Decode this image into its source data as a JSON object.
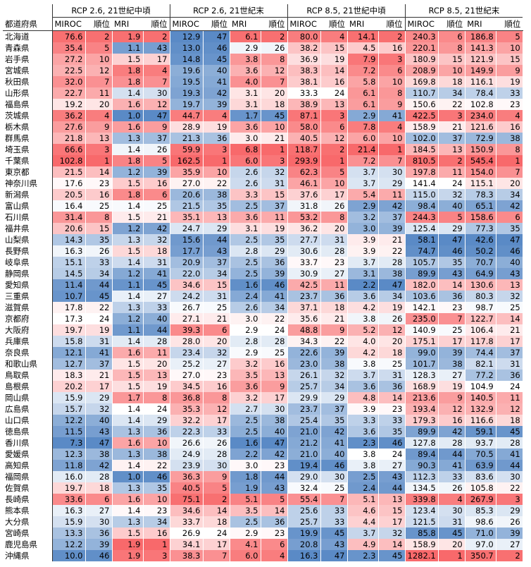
{
  "header": {
    "prefecture_label": "都道府県",
    "groups": [
      {
        "title": "RCP 2.6, 21世紀中頃",
        "columns": [
          "MIROC",
          "順位",
          "MRI",
          "順位"
        ]
      },
      {
        "title": "RCP 2.6, 21世紀末",
        "columns": [
          "MIROC",
          "順位",
          "MRI",
          "順位"
        ]
      },
      {
        "title": "RCP 8.5, 21世紀中頃",
        "columns": [
          "MIROC",
          "順位",
          "MRI",
          "順位"
        ]
      },
      {
        "title": "RCP 8.5, 21世紀末",
        "columns": [
          "MIROC",
          "順位",
          "MRI",
          "順位"
        ]
      }
    ]
  },
  "color_scale": {
    "high": "#f8696b",
    "mid": "#ffffff",
    "low": "#5a8ac6"
  },
  "rows": [
    {
      "name": "北海道",
      "cells": [
        "76.6",
        "2",
        "1.9",
        "2",
        "12.9",
        "47",
        "6.1",
        "2",
        "80.0",
        "4",
        "14.1",
        "2",
        "240.3",
        "6",
        "186.8",
        "5"
      ]
    },
    {
      "name": "青森県",
      "cells": [
        "35.4",
        "5",
        "1.1",
        "43",
        "13.0",
        "46",
        "2.9",
        "26",
        "38.2",
        "15",
        "4.5",
        "16",
        "220.1",
        "8",
        "141.3",
        "10"
      ]
    },
    {
      "name": "岩手県",
      "cells": [
        "27.2",
        "10",
        "1.5",
        "17",
        "14.8",
        "45",
        "3.8",
        "8",
        "36.9",
        "19",
        "7.9",
        "3",
        "180.9",
        "15",
        "121.9",
        "15"
      ]
    },
    {
      "name": "宮城県",
      "cells": [
        "22.5",
        "12",
        "1.8",
        "4",
        "19.6",
        "40",
        "3.6",
        "12",
        "38.3",
        "14",
        "7.2",
        "6",
        "208.9",
        "10",
        "149.9",
        "9"
      ]
    },
    {
      "name": "秋田県",
      "cells": [
        "32.0",
        "7",
        "1.8",
        "7",
        "19.5",
        "41",
        "4.0",
        "7",
        "38.1",
        "16",
        "5.8",
        "10",
        "169.8",
        "18",
        "116.1",
        "19"
      ]
    },
    {
      "name": "山形県",
      "cells": [
        "22.7",
        "11",
        "1.4",
        "30",
        "19.3",
        "42",
        "3.1",
        "20",
        "33.3",
        "24",
        "6.1",
        "8",
        "110.7",
        "34",
        "78.4",
        "33"
      ]
    },
    {
      "name": "福島県",
      "cells": [
        "19.2",
        "20",
        "1.6",
        "12",
        "19.7",
        "39",
        "3.1",
        "18",
        "38.9",
        "13",
        "6.1",
        "9",
        "150.6",
        "22",
        "102.8",
        "23"
      ]
    },
    {
      "name": "茨城県",
      "cells": [
        "36.2",
        "4",
        "1.0",
        "47",
        "44.7",
        "4",
        "1.7",
        "45",
        "87.1",
        "3",
        "2.9",
        "41",
        "422.5",
        "3",
        "234.0",
        "4"
      ]
    },
    {
      "name": "栃木県",
      "cells": [
        "27.6",
        "9",
        "1.6",
        "9",
        "28.9",
        "19",
        "3.6",
        "10",
        "58.0",
        "6",
        "7.8",
        "4",
        "158.9",
        "21",
        "121.6",
        "16"
      ]
    },
    {
      "name": "群馬県",
      "cells": [
        "21.8",
        "13",
        "1.3",
        "37",
        "21.3",
        "36",
        "3.0",
        "21",
        "40.5",
        "12",
        "6.0",
        "10",
        "102.0",
        "37",
        "72.9",
        "38"
      ]
    },
    {
      "name": "埼玉県",
      "cells": [
        "66.6",
        "3",
        "1.4",
        "26",
        "59.9",
        "3",
        "6.8",
        "1",
        "118.7",
        "2",
        "21.4",
        "1",
        "184.5",
        "13",
        "150.9",
        "8"
      ]
    },
    {
      "name": "千葉県",
      "cells": [
        "102.8",
        "1",
        "1.8",
        "5",
        "162.5",
        "1",
        "6.0",
        "3",
        "293.9",
        "1",
        "7.2",
        "7",
        "810.5",
        "2",
        "545.4",
        "1"
      ]
    },
    {
      "name": "東京都",
      "cells": [
        "21.5",
        "14",
        "1.2",
        "39",
        "35.9",
        "10",
        "2.6",
        "32",
        "62.3",
        "5",
        "3.7",
        "30",
        "197.8",
        "11",
        "154.0",
        "7"
      ]
    },
    {
      "name": "神奈川県",
      "cells": [
        "17.6",
        "23",
        "1.5",
        "16",
        "27.0",
        "22",
        "2.6",
        "31",
        "46.1",
        "10",
        "3.7",
        "29",
        "141.4",
        "24",
        "115.1",
        "20"
      ]
    },
    {
      "name": "新潟県",
      "cells": [
        "20.5",
        "16",
        "1.8",
        "6",
        "20.6",
        "38",
        "3.3",
        "15",
        "37.6",
        "17",
        "5.4",
        "11",
        "115.0",
        "32",
        "78.3",
        "34"
      ]
    },
    {
      "name": "富山県",
      "cells": [
        "16.4",
        "25",
        "1.4",
        "25",
        "21.5",
        "35",
        "2.5",
        "37",
        "31.8",
        "26",
        "2.9",
        "42",
        "98.4",
        "40",
        "65.1",
        "42"
      ]
    },
    {
      "name": "石川県",
      "cells": [
        "31.4",
        "8",
        "1.5",
        "21",
        "35.1",
        "13",
        "3.6",
        "11",
        "53.2",
        "8",
        "3.2",
        "37",
        "244.3",
        "5",
        "158.6",
        "6"
      ]
    },
    {
      "name": "福井県",
      "cells": [
        "20.6",
        "15",
        "1.2",
        "42",
        "24.7",
        "29",
        "3.1",
        "19",
        "36.2",
        "20",
        "3.0",
        "39",
        "125.4",
        "29",
        "77.3",
        "35"
      ]
    },
    {
      "name": "山梨県",
      "cells": [
        "14.3",
        "35",
        "1.3",
        "32",
        "15.6",
        "44",
        "2.5",
        "35",
        "27.7",
        "31",
        "3.9",
        "21",
        "58.1",
        "47",
        "42.6",
        "47"
      ]
    },
    {
      "name": "長野県",
      "cells": [
        "16.3",
        "26",
        "1.5",
        "18",
        "17.7",
        "43",
        "2.8",
        "29",
        "30.6",
        "28",
        "3.9",
        "22",
        "74.7",
        "46",
        "50.2",
        "46"
      ]
    },
    {
      "name": "岐阜県",
      "cells": [
        "15.1",
        "33",
        "1.4",
        "31",
        "20.9",
        "37",
        "2.5",
        "36",
        "33.7",
        "23",
        "3.7",
        "28",
        "105.7",
        "35",
        "70.7",
        "40"
      ]
    },
    {
      "name": "静岡県",
      "cells": [
        "14.5",
        "34",
        "1.2",
        "41",
        "22.0",
        "34",
        "2.5",
        "39",
        "30.9",
        "27",
        "3.1",
        "38",
        "89.9",
        "43",
        "64.9",
        "43"
      ]
    },
    {
      "name": "愛知県",
      "cells": [
        "11.4",
        "44",
        "1.1",
        "45",
        "34.6",
        "15",
        "1.6",
        "46",
        "42.5",
        "11",
        "2.2",
        "47",
        "182.0",
        "14",
        "130.6",
        "13"
      ]
    },
    {
      "name": "三重県",
      "cells": [
        "10.7",
        "45",
        "1.4",
        "27",
        "24.2",
        "31",
        "2.4",
        "41",
        "23.7",
        "36",
        "3.6",
        "34",
        "103.6",
        "36",
        "80.3",
        "32"
      ]
    },
    {
      "name": "滋賀県",
      "cells": [
        "17.8",
        "22",
        "1.3",
        "33",
        "26.7",
        "25",
        "2.6",
        "34",
        "37.1",
        "18",
        "4.2",
        "19",
        "142.1",
        "23",
        "98.7",
        "25"
      ]
    },
    {
      "name": "京都府",
      "cells": [
        "17.3",
        "24",
        "1.2",
        "40",
        "27.1",
        "21",
        "3.0",
        "22",
        "35.6",
        "21",
        "3.8",
        "26",
        "235.0",
        "7",
        "122.7",
        "14"
      ]
    },
    {
      "name": "大阪府",
      "cells": [
        "19.7",
        "19",
        "1.1",
        "44",
        "39.3",
        "6",
        "2.9",
        "24",
        "48.8",
        "9",
        "5.2",
        "12",
        "140.9",
        "25",
        "106.4",
        "21"
      ]
    },
    {
      "name": "兵庫県",
      "cells": [
        "15.8",
        "31",
        "1.4",
        "28",
        "28.0",
        "20",
        "2.8",
        "28",
        "34.3",
        "22",
        "4.0",
        "20",
        "175.1",
        "17",
        "117.8",
        "17"
      ]
    },
    {
      "name": "奈良県",
      "cells": [
        "12.1",
        "41",
        "1.6",
        "11",
        "23.4",
        "32",
        "2.9",
        "25",
        "22.6",
        "39",
        "4.2",
        "18",
        "99.0",
        "39",
        "74.4",
        "37"
      ]
    },
    {
      "name": "和歌山県",
      "cells": [
        "12.7",
        "37",
        "1.5",
        "20",
        "25.2",
        "27",
        "3.2",
        "16",
        "23.0",
        "38",
        "3.8",
        "25",
        "101.7",
        "38",
        "82.1",
        "31"
      ]
    },
    {
      "name": "鳥取県",
      "cells": [
        "18.3",
        "21",
        "1.5",
        "13",
        "27.0",
        "23",
        "3.5",
        "13",
        "26.1",
        "32",
        "3.7",
        "31",
        "128.3",
        "27",
        "77.2",
        "36"
      ]
    },
    {
      "name": "島根県",
      "cells": [
        "20.2",
        "17",
        "1.5",
        "19",
        "34.5",
        "16",
        "3.6",
        "9",
        "25.7",
        "34",
        "3.6",
        "36",
        "168.9",
        "19",
        "104.9",
        "24"
      ]
    },
    {
      "name": "岡山県",
      "cells": [
        "15.9",
        "29",
        "1.7",
        "8",
        "36.8",
        "8",
        "3.2",
        "17",
        "29.9",
        "29",
        "4.8",
        "14",
        "213.6",
        "9",
        "140.5",
        "11"
      ]
    },
    {
      "name": "広島県",
      "cells": [
        "15.7",
        "32",
        "1.4",
        "24",
        "35.3",
        "12",
        "2.7",
        "30",
        "23.7",
        "37",
        "3.9",
        "23",
        "193.4",
        "12",
        "132.9",
        "12"
      ]
    },
    {
      "name": "山口県",
      "cells": [
        "12.2",
        "40",
        "1.4",
        "29",
        "32.2",
        "17",
        "2.5",
        "38",
        "25.4",
        "35",
        "3.3",
        "33",
        "179.3",
        "16",
        "116.6",
        "18"
      ]
    },
    {
      "name": "徳島県",
      "cells": [
        "11.5",
        "43",
        "1.3",
        "36",
        "22.3",
        "33",
        "2.5",
        "40",
        "21.0",
        "42",
        "3.6",
        "35",
        "89.9",
        "42",
        "59.1",
        "45"
      ]
    },
    {
      "name": "香川県",
      "cells": [
        "7.3",
        "47",
        "1.6",
        "10",
        "26.6",
        "26",
        "1.6",
        "47",
        "21.2",
        "41",
        "2.3",
        "46",
        "127.8",
        "28",
        "93.7",
        "28"
      ]
    },
    {
      "name": "愛媛県",
      "cells": [
        "12.3",
        "38",
        "1.3",
        "38",
        "24.9",
        "28",
        "2.2",
        "42",
        "21.0",
        "40",
        "3.8",
        "24",
        "89.4",
        "44",
        "70.5",
        "41"
      ]
    },
    {
      "name": "高知県",
      "cells": [
        "11.8",
        "42",
        "1.4",
        "22",
        "23.9",
        "30",
        "3.0",
        "23",
        "19.4",
        "46",
        "3.8",
        "27",
        "90.3",
        "41",
        "63.9",
        "44"
      ]
    },
    {
      "name": "福岡県",
      "cells": [
        "16.0",
        "28",
        "1.0",
        "46",
        "36.3",
        "9",
        "1.8",
        "44",
        "29.0",
        "30",
        "2.5",
        "43",
        "112.3",
        "33",
        "83.6",
        "30"
      ]
    },
    {
      "name": "佐賀県",
      "cells": [
        "19.7",
        "18",
        "1.3",
        "35",
        "40.5",
        "5",
        "1.9",
        "43",
        "32.4",
        "25",
        "2.4",
        "44",
        "134.5",
        "26",
        "105.8",
        "22"
      ]
    },
    {
      "name": "長崎県",
      "cells": [
        "33.6",
        "6",
        "1.6",
        "10",
        "75.1",
        "2",
        "5.1",
        "5",
        "55.4",
        "7",
        "5.1",
        "13",
        "339.8",
        "4",
        "267.9",
        "3"
      ]
    },
    {
      "name": "熊本県",
      "cells": [
        "16.3",
        "27",
        "1.4",
        "23",
        "34.6",
        "14",
        "3.5",
        "14",
        "25.6",
        "33",
        "4.6",
        "15",
        "123.4",
        "30",
        "85.3",
        "29"
      ]
    },
    {
      "name": "大分県",
      "cells": [
        "15.9",
        "30",
        "1.3",
        "34",
        "33.7",
        "18",
        "2.5",
        "36",
        "25.7",
        "33",
        "4.4",
        "17",
        "121.5",
        "31",
        "98.6",
        "26"
      ]
    },
    {
      "name": "宮崎県",
      "cells": [
        "13.3",
        "36",
        "1.5",
        "16",
        "26.9",
        "24",
        "2.9",
        "23",
        "19.9",
        "45",
        "3.7",
        "32",
        "85.8",
        "45",
        "71.0",
        "39"
      ]
    },
    {
      "name": "鹿児島県",
      "cells": [
        "12.2",
        "39",
        "1.9",
        "1",
        "34.1",
        "17",
        "4.1",
        "6",
        "20.8",
        "43",
        "4.9",
        "14",
        "158.9",
        "20",
        "97.0",
        "27"
      ]
    },
    {
      "name": "沖縄県",
      "cells": [
        "10.0",
        "46",
        "1.9",
        "3",
        "38.3",
        "7",
        "6.0",
        "4",
        "16.3",
        "47",
        "2.3",
        "45",
        "1282.1",
        "1",
        "350.7",
        "2"
      ]
    }
  ]
}
